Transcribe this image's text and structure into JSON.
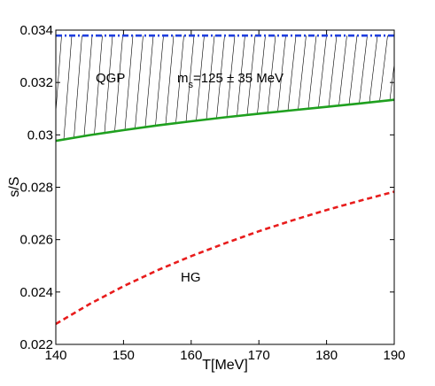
{
  "chart_data": {
    "type": "line",
    "xlabel": "T[MeV]",
    "ylabel": "s/S",
    "xlim": [
      140,
      190
    ],
    "ylim": [
      0.022,
      0.034
    ],
    "x_ticks": [
      "140",
      "150",
      "160",
      "170",
      "180",
      "190"
    ],
    "y_ticks": [
      "0.022",
      "0.024",
      "0.026",
      "0.028",
      "0.03",
      "0.032",
      "0.034"
    ],
    "grid": false,
    "annotations": {
      "qgp": "QGP",
      "ms_prefix": "m",
      "ms_sub": "s",
      "ms_rest": "=125 ± 35 MeV",
      "hg": "HG"
    },
    "series": [
      {
        "style": "dash-dot",
        "color": "#1f3fe0",
        "x": [
          140,
          150,
          160,
          170,
          180,
          190
        ],
        "y": [
          0.03379,
          0.03379,
          0.03379,
          0.03379,
          0.03379,
          0.03379
        ]
      },
      {
        "style": "solid",
        "color": "#1fa01f",
        "x": [
          140,
          145,
          150,
          155,
          160,
          165,
          170,
          175,
          180,
          185,
          190
        ],
        "y": [
          0.02977,
          0.02999,
          0.03018,
          0.03036,
          0.03052,
          0.03067,
          0.03081,
          0.03094,
          0.03107,
          0.0312,
          0.03134
        ]
      },
      {
        "style": "dashed",
        "color": "#e81c1c",
        "x": [
          140,
          145,
          150,
          155,
          160,
          165,
          170,
          175,
          180,
          185,
          190
        ],
        "y": [
          0.02278,
          0.02354,
          0.02422,
          0.02483,
          0.02537,
          0.02586,
          0.02632,
          0.02674,
          0.02713,
          0.02749,
          0.02783
        ]
      }
    ],
    "band": {
      "between_series": [
        0,
        1
      ],
      "pattern": "diagonal-hatch"
    }
  }
}
